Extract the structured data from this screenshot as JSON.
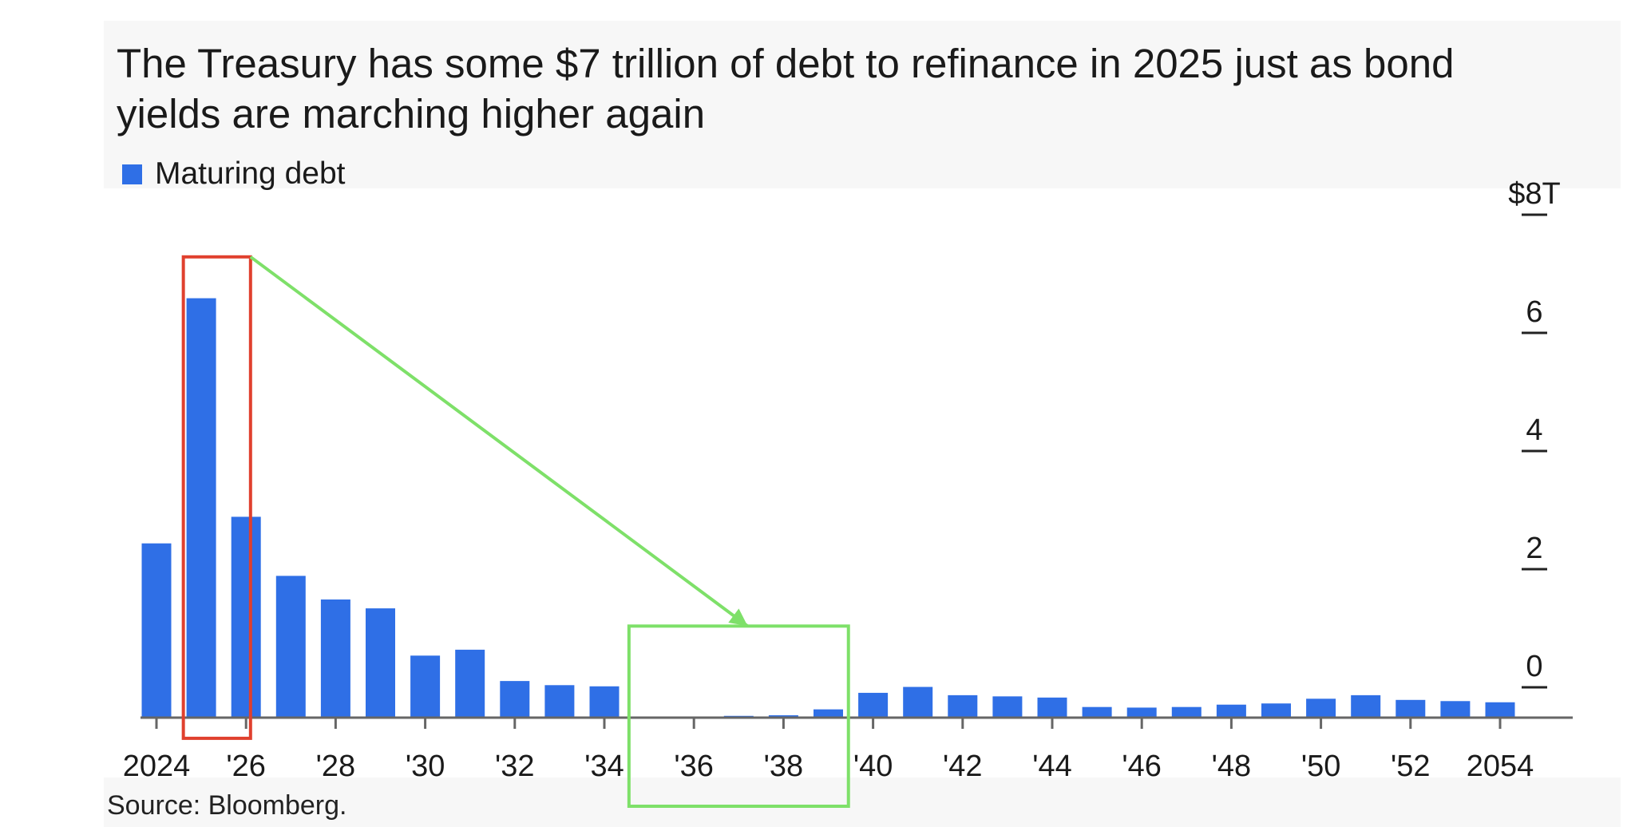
{
  "chart_data": {
    "type": "bar",
    "title": "The Treasury has some $7 trillion of debt to refinance in 2025 just as bond yields are marching higher again",
    "legend": [
      "Maturing debt"
    ],
    "legend_position": "top-left",
    "x": [
      2024,
      2025,
      2026,
      2027,
      2028,
      2029,
      2030,
      2031,
      2032,
      2033,
      2034,
      2035,
      2036,
      2037,
      2038,
      2039,
      2040,
      2041,
      2042,
      2043,
      2044,
      2045,
      2046,
      2047,
      2048,
      2049,
      2050,
      2051,
      2052,
      2053,
      2054
    ],
    "x_tick_values": [
      2024,
      2026,
      2028,
      2030,
      2032,
      2034,
      2036,
      2038,
      2040,
      2042,
      2044,
      2046,
      2048,
      2050,
      2052,
      2054
    ],
    "x_tick_labels": [
      "2024",
      "'26",
      "'28",
      "'30",
      "'32",
      "'34",
      "'36",
      "'38",
      "'40",
      "'42",
      "'44",
      "'46",
      "'48",
      "'50",
      "'52",
      "2054"
    ],
    "series": [
      {
        "name": "Maturing debt",
        "color": "#2f6fe6",
        "values": [
          2.95,
          7.1,
          3.4,
          2.4,
          2.0,
          1.85,
          1.05,
          1.15,
          0.62,
          0.55,
          0.53,
          0.02,
          0.02,
          0.03,
          0.04,
          0.14,
          0.42,
          0.52,
          0.38,
          0.36,
          0.34,
          0.18,
          0.17,
          0.18,
          0.22,
          0.24,
          0.32,
          0.38,
          0.3,
          0.28,
          0.26
        ]
      }
    ],
    "y_axis_position": "right",
    "ylim": [
      0,
      8
    ],
    "y_ticks": [
      0,
      2,
      4,
      6,
      8
    ],
    "y_tick_labels": [
      "0",
      "2",
      "4",
      "6",
      "$8T"
    ],
    "grid": false,
    "annotations": [
      {
        "type": "rectangle",
        "color": "#e0402e",
        "x_range": [
          2024.6,
          2026.1
        ],
        "y_range": [
          -0.35,
          7.8
        ]
      },
      {
        "type": "rectangle",
        "color": "#7ee069",
        "x_range": [
          2034.55,
          2039.45
        ],
        "y_range": [
          -1.5,
          1.55
        ]
      },
      {
        "type": "arrow",
        "color": "#7ee069",
        "from": [
          2026.1,
          7.8
        ],
        "to": [
          2037.2,
          1.55
        ]
      }
    ]
  },
  "source": "Source: Bloomberg.",
  "colors": {
    "bar": "#2f6fe6",
    "axis": "#666666",
    "red_box": "#e0402e",
    "green": "#7ee069"
  }
}
